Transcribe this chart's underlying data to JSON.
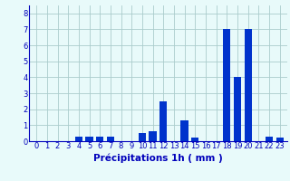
{
  "categories": [
    0,
    1,
    2,
    3,
    4,
    5,
    6,
    7,
    8,
    9,
    10,
    11,
    12,
    13,
    14,
    15,
    16,
    17,
    18,
    19,
    20,
    21,
    22,
    23
  ],
  "values": [
    0,
    0,
    0,
    0,
    0.3,
    0.3,
    0.3,
    0.3,
    0,
    0,
    0.5,
    0.6,
    2.5,
    0,
    1.3,
    0.2,
    0,
    0,
    7.0,
    4.0,
    7.0,
    0,
    0.3,
    0.2
  ],
  "bar_color": "#0033cc",
  "background_color": "#e8fafa",
  "grid_color": "#aacccc",
  "xlabel": "Précipitations 1h ( mm )",
  "ylim": [
    0,
    8.5
  ],
  "yticks": [
    0,
    1,
    2,
    3,
    4,
    5,
    6,
    7,
    8
  ],
  "tick_color": "#0000bb",
  "tick_fontsize": 6,
  "xlabel_fontsize": 7.5,
  "xlabel_color": "#0000bb",
  "bar_width": 0.7
}
